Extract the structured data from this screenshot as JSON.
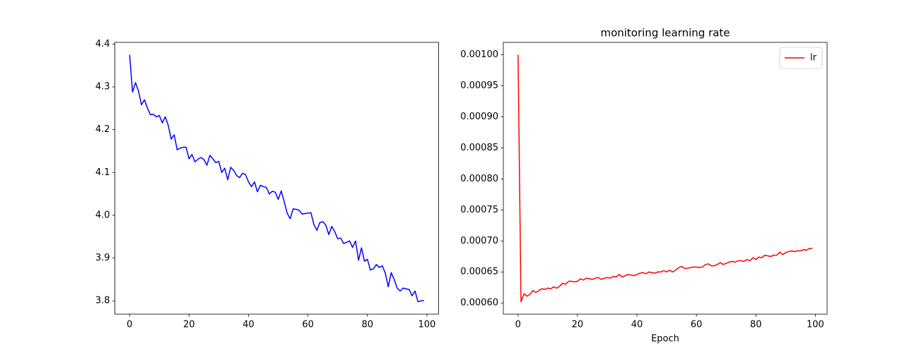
{
  "chart_data": [
    {
      "type": "line",
      "x": [
        0,
        1,
        2,
        3,
        4,
        5,
        6,
        7,
        8,
        9,
        10,
        11,
        12,
        13,
        14,
        15,
        16,
        17,
        18,
        19,
        20,
        21,
        22,
        23,
        24,
        25,
        26,
        27,
        28,
        29,
        30,
        31,
        32,
        33,
        34,
        35,
        36,
        37,
        38,
        39,
        40,
        41,
        42,
        43,
        44,
        45,
        46,
        47,
        48,
        49,
        50,
        51,
        52,
        53,
        54,
        55,
        56,
        57,
        58,
        59,
        60,
        61,
        62,
        63,
        64,
        65,
        66,
        67,
        68,
        69,
        70,
        71,
        72,
        73,
        74,
        75,
        76,
        77,
        78,
        79,
        80,
        81,
        82,
        83,
        84,
        85,
        86,
        87,
        88,
        89,
        90,
        91,
        92,
        93,
        94,
        95,
        96,
        97,
        98,
        99
      ],
      "values": [
        4.375,
        4.288,
        4.31,
        4.29,
        4.258,
        4.27,
        4.25,
        4.235,
        4.236,
        4.23,
        4.233,
        4.216,
        4.23,
        4.21,
        4.178,
        4.188,
        4.153,
        4.157,
        4.159,
        4.159,
        4.132,
        4.142,
        4.125,
        4.131,
        4.135,
        4.13,
        4.117,
        4.14,
        4.132,
        4.123,
        4.126,
        4.1,
        4.11,
        4.083,
        4.112,
        4.105,
        4.093,
        4.088,
        4.098,
        4.095,
        4.078,
        4.067,
        4.078,
        4.055,
        4.07,
        4.067,
        4.065,
        4.05,
        4.056,
        4.054,
        4.037,
        4.057,
        4.032,
        4.005,
        3.992,
        4.015,
        4.014,
        4.012,
        4.003,
        4.004,
        4.005,
        4.006,
        3.978,
        3.965,
        3.983,
        3.985,
        3.977,
        3.955,
        3.974,
        3.962,
        3.945,
        3.947,
        3.934,
        3.937,
        3.94,
        3.925,
        3.94,
        3.895,
        3.924,
        3.893,
        3.897,
        3.872,
        3.875,
        3.885,
        3.878,
        3.882,
        3.865,
        3.833,
        3.866,
        3.85,
        3.83,
        3.823,
        3.83,
        3.828,
        3.827,
        3.812,
        3.823,
        3.798,
        3.8,
        3.801
      ],
      "color": "#0000ff",
      "xlim": [
        -4.95,
        103.95
      ],
      "xticks": [
        0,
        20,
        40,
        60,
        80,
        100
      ],
      "ylim": [
        3.769,
        4.404
      ],
      "yticks": [
        {
          "value": 3.8,
          "label": "3.8"
        },
        {
          "value": 3.9,
          "label": "3.9"
        },
        {
          "value": 4.0,
          "label": "4.0"
        },
        {
          "value": 4.1,
          "label": "4.1"
        },
        {
          "value": 4.2,
          "label": "4.2"
        },
        {
          "value": 4.3,
          "label": "4.3"
        },
        {
          "value": 4.4,
          "label": "4.4"
        }
      ]
    },
    {
      "type": "line",
      "title": "monitoring learning rate",
      "x_label": "Epoch",
      "x": [
        0,
        1,
        2,
        3,
        4,
        5,
        6,
        7,
        8,
        9,
        10,
        11,
        12,
        13,
        14,
        15,
        16,
        17,
        18,
        19,
        20,
        21,
        22,
        23,
        24,
        25,
        26,
        27,
        28,
        29,
        30,
        31,
        32,
        33,
        34,
        35,
        36,
        37,
        38,
        39,
        40,
        41,
        42,
        43,
        44,
        45,
        46,
        47,
        48,
        49,
        50,
        51,
        52,
        53,
        54,
        55,
        56,
        57,
        58,
        59,
        60,
        61,
        62,
        63,
        64,
        65,
        66,
        67,
        68,
        69,
        70,
        71,
        72,
        73,
        74,
        75,
        76,
        77,
        78,
        79,
        80,
        81,
        82,
        83,
        84,
        85,
        86,
        87,
        88,
        89,
        90,
        91,
        92,
        93,
        94,
        95,
        96,
        97,
        98,
        99
      ],
      "series": [
        {
          "name": "lr",
          "color": "#ff0000",
          "values": [
            0.001,
            0.000602,
            0.000615,
            0.000611,
            0.000614,
            0.00062,
            0.000617,
            0.00062,
            0.000623,
            0.000622,
            0.000624,
            0.000623,
            0.000626,
            0.000624,
            0.000627,
            0.000632,
            0.00063,
            0.000635,
            0.000635,
            0.000634,
            0.000635,
            0.000639,
            0.000637,
            0.00064,
            0.000639,
            0.000638,
            0.00064,
            0.000641,
            0.000638,
            0.00064,
            0.000641,
            0.00064,
            0.000643,
            0.000642,
            0.000646,
            0.000642,
            0.000644,
            0.000646,
            0.000645,
            0.000644,
            0.000646,
            0.000648,
            0.000649,
            0.000647,
            0.00065,
            0.000649,
            0.000648,
            0.00065,
            0.00065,
            0.000652,
            0.00065,
            0.000653,
            0.00065,
            0.000653,
            0.000657,
            0.000659,
            0.000656,
            0.000656,
            0.000657,
            0.000658,
            0.000658,
            0.000657,
            0.000658,
            0.000662,
            0.000663,
            0.00066,
            0.00066,
            0.000662,
            0.000665,
            0.000662,
            0.000664,
            0.000666,
            0.000667,
            0.000666,
            0.000668,
            0.000668,
            0.000667,
            0.00067,
            0.000668,
            0.000673,
            0.00067,
            0.000674,
            0.000673,
            0.000677,
            0.000676,
            0.000675,
            0.000677,
            0.000677,
            0.000682,
            0.000678,
            0.000681,
            0.000683,
            0.000684,
            0.000683,
            0.000684,
            0.000684,
            0.000686,
            0.000685,
            0.000688,
            0.000688
          ]
        }
      ],
      "legend": "upper right",
      "xlim": [
        -4.95,
        103.95
      ],
      "xticks": [
        0,
        20,
        40,
        60,
        80,
        100
      ],
      "ylim": [
        0.000582,
        0.00102
      ],
      "yticks": [
        {
          "value": 0.0006,
          "label": "0.00060"
        },
        {
          "value": 0.00065,
          "label": "0.00065"
        },
        {
          "value": 0.0007,
          "label": "0.00070"
        },
        {
          "value": 0.00075,
          "label": "0.00075"
        },
        {
          "value": 0.0008,
          "label": "0.00080"
        },
        {
          "value": 0.00085,
          "label": "0.00085"
        },
        {
          "value": 0.0009,
          "label": "0.00090"
        },
        {
          "value": 0.00095,
          "label": "0.00095"
        },
        {
          "value": 0.001,
          "label": "0.00100"
        }
      ]
    }
  ]
}
